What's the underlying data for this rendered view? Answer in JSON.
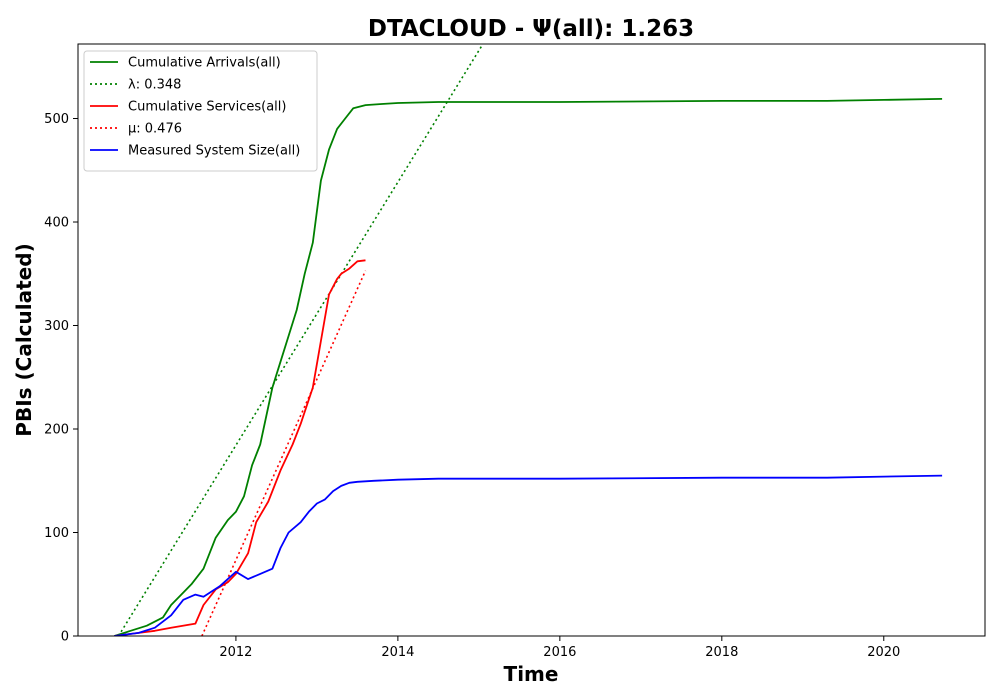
{
  "chart_data": {
    "type": "line",
    "title": "DTACLOUD -  Ψ(all): 1.263",
    "xlabel": "Time",
    "ylabel": "PBIs (Calculated)",
    "xlim": [
      2010.05,
      2021.25
    ],
    "ylim": [
      0,
      572
    ],
    "xticks": [
      2012,
      2014,
      2016,
      2018,
      2020
    ],
    "yticks": [
      0,
      100,
      200,
      300,
      400,
      500
    ],
    "grid": false,
    "legend_position": "top-left",
    "series": [
      {
        "name": "Cumulative Arrivals(all)",
        "style": "solid",
        "color": "#008000",
        "x": [
          2010.5,
          2010.7,
          2010.9,
          2011.1,
          2011.2,
          2011.3,
          2011.45,
          2011.6,
          2011.75,
          2011.9,
          2012.0,
          2012.1,
          2012.2,
          2012.3,
          2012.45,
          2012.55,
          2012.65,
          2012.75,
          2012.85,
          2012.95,
          2013.05,
          2013.15,
          2013.25,
          2013.35,
          2013.45,
          2013.6,
          2013.8,
          2014.0,
          2014.5,
          2015.0,
          2016.0,
          2018.0,
          2019.3,
          2020.0,
          2020.72
        ],
        "y": [
          0,
          5,
          10,
          18,
          30,
          38,
          50,
          65,
          95,
          112,
          120,
          135,
          165,
          185,
          240,
          265,
          290,
          315,
          350,
          380,
          440,
          470,
          490,
          500,
          510,
          513,
          514,
          515,
          516,
          516,
          516,
          517,
          517,
          518,
          519
        ]
      },
      {
        "name": "λ: 0.348",
        "style": "dotted",
        "color": "#008000",
        "x": [
          2010.55,
          2015.05
        ],
        "y": [
          0,
          572
        ]
      },
      {
        "name": "Cumulative Services(all)",
        "style": "solid",
        "color": "#ff0000",
        "x": [
          2010.5,
          2010.8,
          2011.0,
          2011.2,
          2011.5,
          2011.6,
          2011.75,
          2011.9,
          2012.0,
          2012.15,
          2012.25,
          2012.4,
          2012.55,
          2012.7,
          2012.8,
          2012.95,
          2013.05,
          2013.15,
          2013.25,
          2013.3,
          2013.4,
          2013.5,
          2013.6
        ],
        "y": [
          0,
          3,
          5,
          8,
          12,
          30,
          45,
          52,
          60,
          80,
          110,
          130,
          160,
          185,
          205,
          240,
          285,
          330,
          345,
          350,
          355,
          362,
          363
        ]
      },
      {
        "name": "μ: 0.476",
        "style": "dotted",
        "color": "#ff0000",
        "x": [
          2011.58,
          2013.6
        ],
        "y": [
          0,
          353
        ]
      },
      {
        "name": "Measured System Size(all)",
        "style": "solid",
        "color": "#0000ff",
        "x": [
          2010.5,
          2010.8,
          2011.0,
          2011.2,
          2011.35,
          2011.5,
          2011.6,
          2011.8,
          2012.0,
          2012.15,
          2012.3,
          2012.45,
          2012.55,
          2012.65,
          2012.8,
          2012.9,
          2013.0,
          2013.1,
          2013.2,
          2013.3,
          2013.4,
          2013.5,
          2013.7,
          2014.0,
          2014.5,
          2015.0,
          2016.0,
          2018.0,
          2019.3,
          2020.0,
          2020.72
        ],
        "y": [
          0,
          3,
          8,
          20,
          35,
          40,
          38,
          48,
          62,
          55,
          60,
          65,
          85,
          100,
          110,
          120,
          128,
          132,
          140,
          145,
          148,
          149,
          150,
          151,
          152,
          152,
          152,
          153,
          153,
          154,
          155
        ]
      }
    ]
  }
}
